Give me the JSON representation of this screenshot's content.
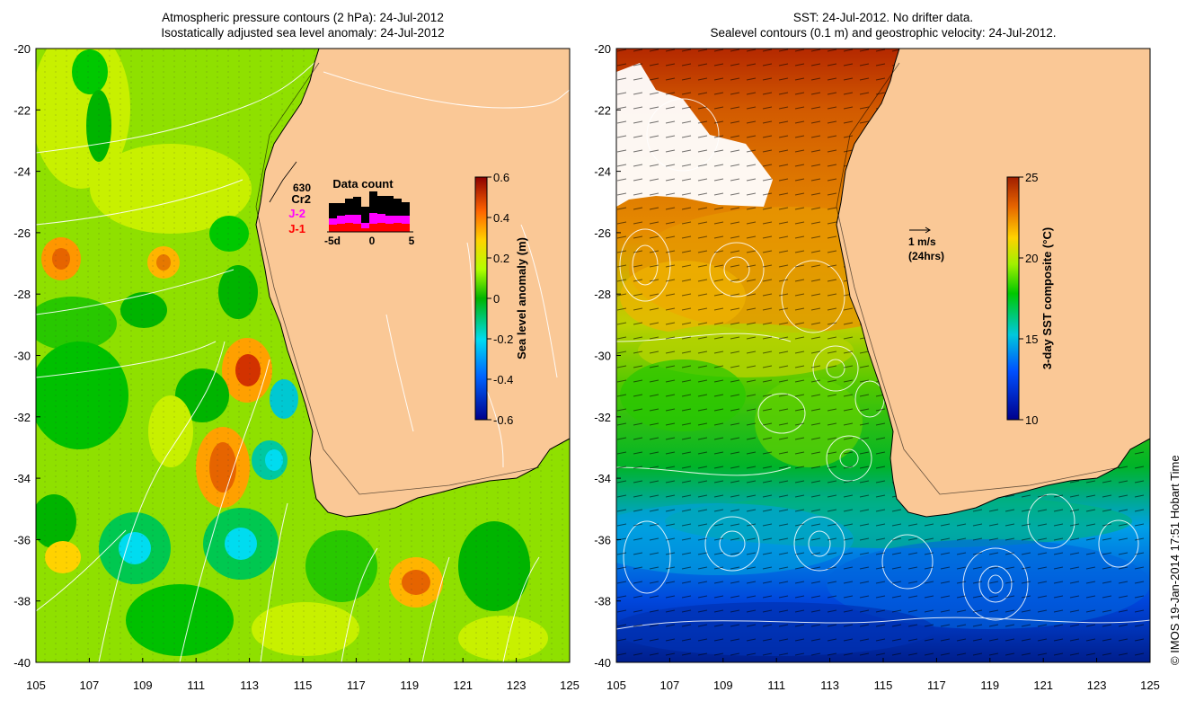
{
  "left_panel": {
    "title_line1": "Atmospheric pressure contours (2 hPa): 24-Jul-2012",
    "title_line2": "Isostatically adjusted sea level anomaly: 24-Jul-2012",
    "colorbar": {
      "label": "Sea level anomaly (m)",
      "ticks": [
        "0.6",
        "0.4",
        "0.2",
        "0",
        "-0.2",
        "-0.4",
        "-0.6"
      ],
      "range": [
        -0.6,
        0.6
      ]
    },
    "data_count": {
      "title": "Data count",
      "total": "630",
      "cr2_label": "Cr2",
      "j2_label": "J-2",
      "j1_label": "J-1",
      "axis_labels": [
        "-5d",
        "0",
        "5"
      ],
      "colors": {
        "cr2": "#000000",
        "j2": "#ff00ff",
        "j1": "#ff0000"
      }
    }
  },
  "right_panel": {
    "title_line1": "SST: 24-Jul-2012. No drifter data.",
    "title_line2": "Sealevel contours (0.1 m) and geostrophic velocity: 24-Jul-2012.",
    "colorbar": {
      "label": "3-day SST composite (°C)",
      "ticks": [
        "25",
        "20",
        "15",
        "10"
      ],
      "range": [
        10,
        25
      ]
    },
    "velocity_scale": {
      "label": "1 m/s",
      "sublabel": "(24hrs)"
    }
  },
  "axes": {
    "x_ticks": [
      "105",
      "107",
      "109",
      "111",
      "113",
      "115",
      "117",
      "119",
      "121",
      "123",
      "125"
    ],
    "y_ticks": [
      "-20",
      "-22",
      "-24",
      "-26",
      "-28",
      "-30",
      "-32",
      "-34",
      "-36",
      "-38",
      "-40"
    ],
    "lon_range": [
      105,
      125
    ],
    "lat_range": [
      -40,
      -20
    ]
  },
  "credit": "© IMOS 19-Jan-2014 17:51 Hobart Time",
  "colors": {
    "land": "#fac896",
    "coast": "#000000",
    "contour": "#ffffff"
  }
}
